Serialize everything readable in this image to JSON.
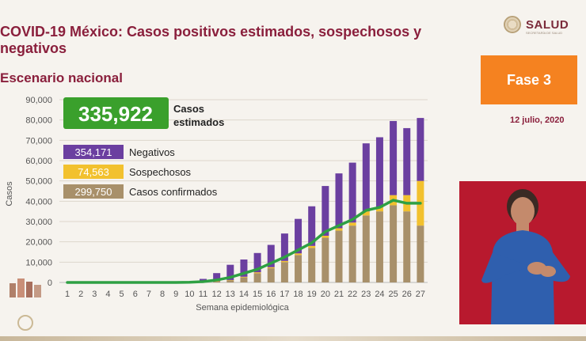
{
  "header": {
    "title": "COVID-19 México: Casos positivos estimados, sospechosos y negativos",
    "subtitle": "Escenario nacional",
    "logo_text": "SALUD",
    "logo_sub": "SECRETARÍA DE SALUD",
    "phase": "Fase 3",
    "date": "12 julio, 2020"
  },
  "colors": {
    "negativos": "#6b3fa0",
    "sospechosos": "#f2c12e",
    "confirmados": "#a8906a",
    "estimados_line": "#2ea043",
    "title": "#8a1f3c",
    "phase_box": "#f58220"
  },
  "chart_data": {
    "type": "bar",
    "stacked": true,
    "xlabel": "Semana epidemiológica",
    "ylabel": "Casos",
    "ylim": [
      0,
      90000
    ],
    "yticks": [
      "0",
      "10,000",
      "20,000",
      "30,000",
      "40,000",
      "50,000",
      "60,000",
      "70,000",
      "80,000",
      "90,000"
    ],
    "grid": true,
    "categories": [
      "1",
      "2",
      "3",
      "4",
      "5",
      "6",
      "7",
      "8",
      "9",
      "10",
      "11",
      "12",
      "13",
      "14",
      "15",
      "16",
      "17",
      "18",
      "19",
      "20",
      "21",
      "22",
      "23",
      "24",
      "25",
      "26",
      "27"
    ],
    "series": [
      {
        "name": "Casos confirmados",
        "color": "#a8906a",
        "values": [
          0,
          0,
          0,
          0,
          0,
          0,
          0,
          0,
          0,
          50,
          200,
          500,
          1000,
          2500,
          4500,
          7000,
          10000,
          13500,
          17000,
          22000,
          25500,
          28000,
          33000,
          35000,
          38000,
          35000,
          28000
        ]
      },
      {
        "name": "Sospechosos",
        "color": "#f2c12e",
        "values": [
          0,
          0,
          0,
          0,
          0,
          0,
          0,
          0,
          0,
          0,
          50,
          100,
          200,
          300,
          500,
          500,
          600,
          800,
          1000,
          1000,
          1200,
          1500,
          2000,
          2000,
          5000,
          8000,
          22000
        ]
      },
      {
        "name": "Negativos",
        "color": "#6b3fa0",
        "values": [
          0,
          0,
          0,
          0,
          0,
          0,
          0,
          0,
          0,
          500,
          1500,
          4000,
          7500,
          8500,
          9500,
          11000,
          13500,
          17000,
          19500,
          24500,
          27000,
          29500,
          33500,
          34500,
          36500,
          33000,
          31000
        ]
      }
    ],
    "line": {
      "name": "Casos estimados",
      "color": "#2ea043",
      "values": [
        0,
        0,
        0,
        0,
        0,
        0,
        0,
        0,
        0,
        100,
        400,
        1200,
        2500,
        4500,
        6500,
        9500,
        12500,
        16000,
        19500,
        25000,
        28000,
        31000,
        35500,
        37000,
        40500,
        39000,
        39000
      ]
    },
    "legend": {
      "headline": {
        "value": "335,922",
        "label": "Casos estimados"
      },
      "items": [
        {
          "value": "354,171",
          "label": "Negativos",
          "color": "#6b3fa0"
        },
        {
          "value": "74,563",
          "label": "Sospechosos",
          "color": "#f2c12e"
        },
        {
          "value": "299,750",
          "label": "Casos confirmados",
          "color": "#a8906a"
        }
      ]
    }
  }
}
